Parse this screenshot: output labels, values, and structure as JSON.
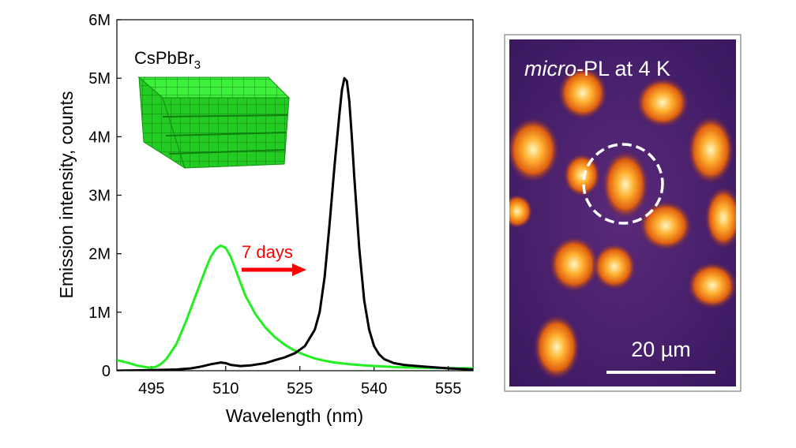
{
  "chart_data": [
    {
      "type": "line",
      "xlabel": "Wavelength (nm)",
      "ylabel": "Emission intensity, counts",
      "xlim": [
        488,
        560
      ],
      "ylim": [
        0,
        6000000
      ],
      "x_ticks": [
        495,
        510,
        525,
        540,
        555
      ],
      "y_ticks": [
        {
          "value": 0,
          "label": "0"
        },
        {
          "value": 1000000,
          "label": "1M"
        },
        {
          "value": 2000000,
          "label": "2M"
        },
        {
          "value": 3000000,
          "label": "3M"
        },
        {
          "value": 4000000,
          "label": "4M"
        },
        {
          "value": 5000000,
          "label": "5M"
        },
        {
          "value": 6000000,
          "label": "6M"
        }
      ],
      "grid": false,
      "series": [
        {
          "color": "#22ee22",
          "x": [
            488,
            490,
            492,
            494,
            495,
            496,
            497,
            498,
            500,
            502,
            504,
            506,
            507,
            508,
            509,
            510,
            511,
            512,
            513,
            514,
            516,
            518,
            520,
            522,
            524,
            526,
            528,
            530,
            532,
            535,
            538,
            541,
            545,
            550,
            555,
            560
          ],
          "y": [
            180000,
            140000,
            90000,
            60000,
            50000,
            70000,
            120000,
            200000,
            450000,
            850000,
            1300000,
            1750000,
            1950000,
            2080000,
            2140000,
            2100000,
            1950000,
            1730000,
            1500000,
            1280000,
            970000,
            740000,
            570000,
            440000,
            340000,
            270000,
            210000,
            170000,
            140000,
            110000,
            90000,
            75000,
            60000,
            50000,
            45000,
            40000
          ]
        },
        {
          "color": "#000000",
          "x": [
            488,
            495,
            500,
            503,
            505,
            507,
            509,
            510,
            511,
            513,
            515,
            518,
            520,
            522,
            524,
            526,
            528,
            529,
            530,
            531,
            532,
            533,
            533.5,
            534,
            534.5,
            535,
            535.5,
            536,
            537,
            538,
            539,
            540,
            541,
            542,
            544,
            546,
            550,
            555,
            560
          ],
          "y": [
            0,
            10000,
            20000,
            40000,
            70000,
            110000,
            140000,
            130000,
            100000,
            80000,
            90000,
            130000,
            180000,
            230000,
            300000,
            420000,
            700000,
            1000000,
            1600000,
            2500000,
            3500000,
            4400000,
            4800000,
            5000000,
            4950000,
            4600000,
            4000000,
            3300000,
            2100000,
            1200000,
            700000,
            420000,
            280000,
            200000,
            130000,
            100000,
            70000,
            40000,
            20000
          ]
        }
      ],
      "annotations": [
        {
          "text": "7 days",
          "color": "#ff0000"
        }
      ],
      "inset_label": {
        "main": "CsPbBr",
        "sub": "3"
      }
    },
    {
      "type": "heatmap",
      "title": "micro-PL at 4 K",
      "title_italic": "micro",
      "title_rest": "-PL at 4 K",
      "scale_bar": "20 µm"
    }
  ]
}
